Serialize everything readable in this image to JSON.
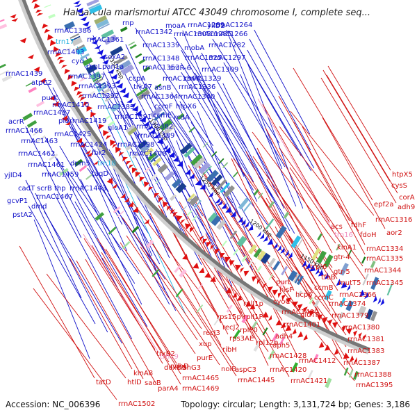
{
  "title": "Haloarcula marismortui ATCC 43049 chromosome I, complete seq...",
  "footer": {
    "accession": "Accession: NC_006396",
    "summary": "Topology: circular; Length: 3,131,724 bp; Genes: 3,186"
  },
  "colors": {
    "forward_label": "#1010c8",
    "reverse_label": "#d01010",
    "rna_forward": "#20b0e0",
    "rna_reverse": "#f090c0",
    "backbone": "#777777"
  },
  "kbp_ticks": [
    "1150 kbp",
    "1200 kbp",
    "1250 kbp",
    "1300 kbp",
    "1350 kbp"
  ],
  "forward_genes": [
    "rrnAC1264",
    "rrnAC1266",
    "rrnAC1282",
    "ylID2",
    "rrnAC1285",
    "rrnAC1289",
    "moaA",
    "rrnAC1305",
    "rrnAC1342",
    "rnp",
    "rrnAC1386",
    "rrnAC1361",
    "trn17",
    "rrnAC1403",
    "cyo",
    "rpoL",
    "pan1a",
    "soxA2",
    "rrnAC1339",
    "mobA",
    "rrnAC1297",
    "rrnAC1325",
    "rrnAC1348",
    "rrnAC1353",
    "arcR-6",
    "rrnAC1309",
    "rrnAC1397",
    "rrnAC1393",
    "ccpA",
    "trkA7",
    "rrnAC1347",
    "rrnAC1329",
    "asnB",
    "rrnAC1336",
    "rrnAC1439",
    "atpC2",
    "purK",
    "rrnAC1392",
    "rrnAC1364",
    "rrnAC1340",
    "htpX6",
    "rrnAC1410",
    "rrnAC1385",
    "ccmF",
    "rrnAC1437",
    "pld",
    "rrnAC1419",
    "rrnAC1391",
    "ccmE",
    "rcdA",
    "acrR",
    "rrnAC1466",
    "rrnAC1425",
    "gloA1",
    "rrnAC1382",
    "rrnAC1389",
    "rrnAC1463",
    "rrnAC1424",
    "rrnAC1398",
    "rrnAC1462",
    "fbr2",
    "rrnAC1408",
    "trn18",
    "rrnAC1461",
    "dpm5",
    "yjID4",
    "rrnAC1459",
    "taqD",
    "cadT",
    "scrB",
    "thp",
    "rrnAC1443",
    "gcvP1",
    "rrnAC1467",
    "dmd",
    "pstA2"
  ],
  "reverse_genes": [
    "htpX5",
    "cysS",
    "corA",
    "adh9",
    "epf2a",
    "rrnAC1316",
    "aor2",
    "acs",
    "fdhF",
    "trn16",
    "fdoH",
    "kinA1",
    "rrnAC1334",
    "gtr-4",
    "rrnAC1335",
    "trp-6",
    "gtr-5",
    "rrnAC1344",
    "tfbB",
    "ccmB",
    "mutT5",
    "rrnAC1345",
    "purL",
    "hisF",
    "hcp6",
    "ccmC",
    "rrnAC1366",
    "gluTR",
    "rrnAC1374",
    "cyoC",
    "rrnAC1400",
    "rrnAC1379",
    "rrnAC1401",
    "rrnAC1380",
    "adh4",
    "rplI1p",
    "rplI1P",
    "rpIP0",
    "rpl12p",
    "dph5",
    "rrnAC1381",
    "rps15p",
    "recJ2",
    "rps3AE",
    "ribH",
    "rrnAC1383",
    "recJ3",
    "rrnAC1428",
    "rrnAC1412",
    "rrnAC1387",
    "xup",
    "purE",
    "nolB",
    "aspC3",
    "rrnAC1420",
    "ndhD",
    "trxB2",
    "trn19",
    "ndhG3",
    "rrnAC1445",
    "rrnAC1421",
    "rrnAC1388",
    "doxD5",
    "rrnAC1465",
    "rrnAC1469",
    "rrnAC1395",
    "kinA8",
    "sacB",
    "parA4",
    "tatD",
    "htlD",
    "rrnAC1502"
  ]
}
